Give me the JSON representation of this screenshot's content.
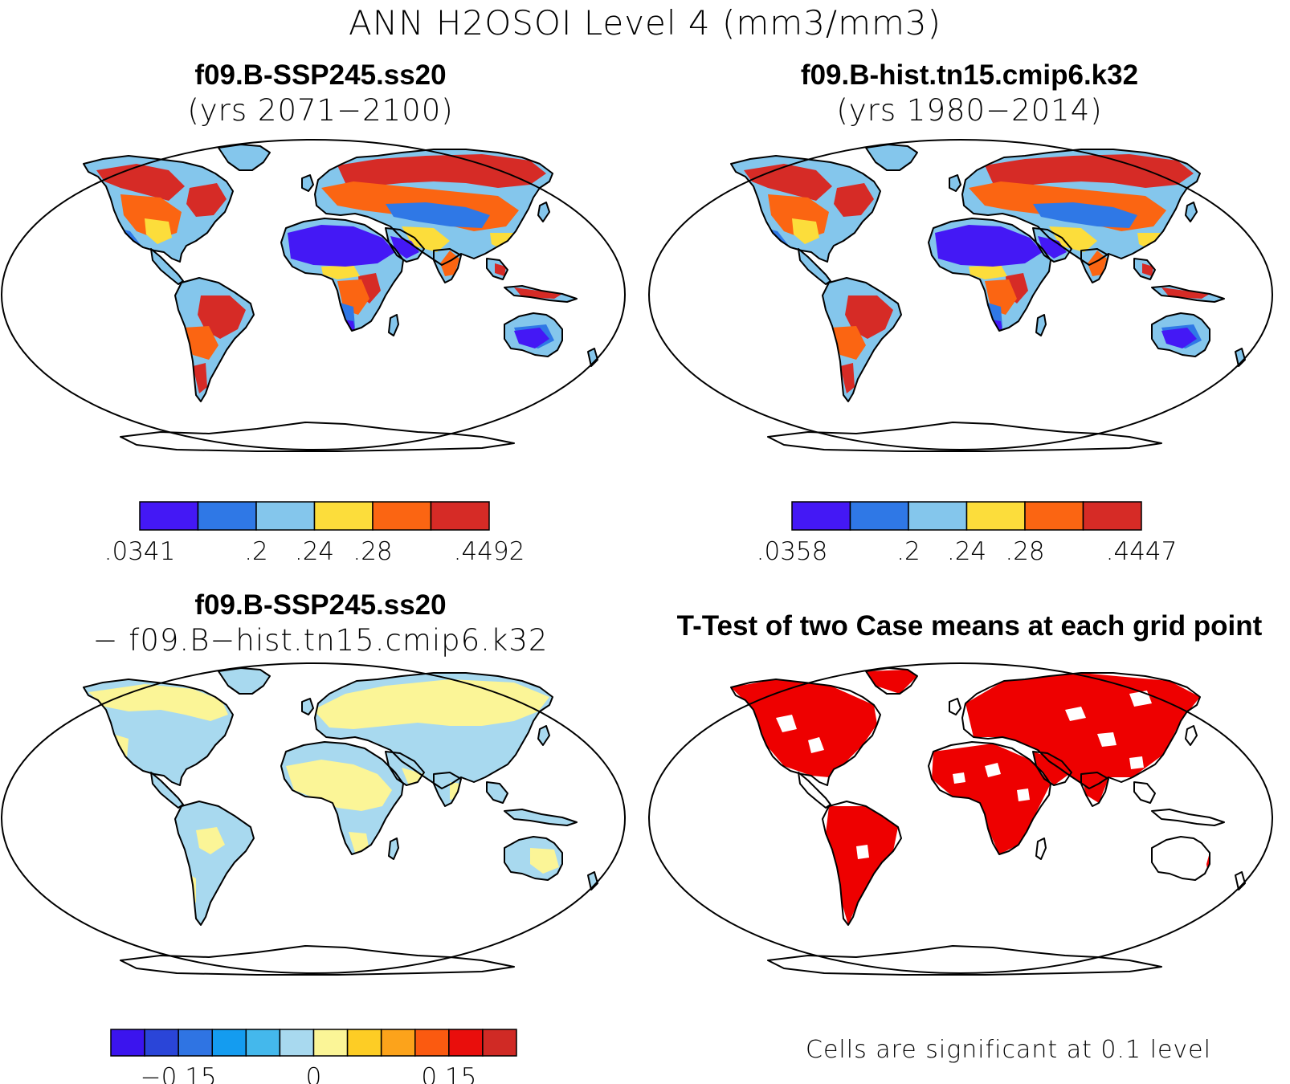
{
  "title": "ANN H2OSOI Level 4 (mm3/mm3)",
  "panels": {
    "top_left": {
      "title": "f09.B-SSP245.ss20",
      "subtitle": "(yrs 2071−2100)"
    },
    "top_right": {
      "title": "f09.B-hist.tn15.cmip6.k32",
      "subtitle": "(yrs 1980−2014)"
    },
    "bottom_left": {
      "title": "f09.B-SSP245.ss20",
      "subtitle": "− f09.B−hist.tn15.cmip6.k32"
    },
    "bottom_right": {
      "title": "T-Test of two Case means at each grid point"
    }
  },
  "colorbars": {
    "top_left": {
      "colors": [
        "#4418f5",
        "#2f78e6",
        "#84c6ec",
        "#fcdd3b",
        "#fb6512",
        "#d62b26"
      ],
      "labels": [
        ".0341",
        ".2",
        ".24",
        ".28",
        ".4492"
      ],
      "label_slots": [
        0,
        2,
        3,
        4,
        6
      ]
    },
    "top_right": {
      "colors": [
        "#4418f5",
        "#2f78e6",
        "#84c6ec",
        "#fcdd3b",
        "#fb6512",
        "#d62b26"
      ],
      "labels": [
        ".0358",
        ".2",
        ".24",
        ".28",
        ".4447"
      ],
      "label_slots": [
        0,
        2,
        3,
        4,
        6
      ]
    },
    "bottom_left": {
      "colors": [
        "#3b14ee",
        "#2a45d8",
        "#2f74e3",
        "#149cf0",
        "#44b8ec",
        "#a8d9ef",
        "#fbf597",
        "#fdcd25",
        "#fca31b",
        "#fb5a10",
        "#e90e0c",
        "#d02a25"
      ],
      "labels": [
        "−0.15",
        "0",
        "0.15"
      ],
      "label_slots": [
        2,
        6,
        10
      ]
    }
  },
  "significance_note": "Cells are significant at 0.1 level",
  "chart_data": [
    {
      "type": "map",
      "panel": "top_left",
      "variable": "H2OSOI",
      "units": "mm3/mm3",
      "min": 0.0341,
      "max": 0.4492,
      "levels": [
        0.2,
        0.24,
        0.28
      ]
    },
    {
      "type": "map",
      "panel": "top_right",
      "variable": "H2OSOI",
      "units": "mm3/mm3",
      "min": 0.0358,
      "max": 0.4447,
      "levels": [
        0.2,
        0.24,
        0.28
      ]
    },
    {
      "type": "map",
      "panel": "bottom_left",
      "variable": "H2OSOI difference",
      "units": "mm3/mm3",
      "tick_values": [
        -0.15,
        0,
        0.15
      ]
    },
    {
      "type": "map",
      "panel": "bottom_right",
      "variable": "significance",
      "significance_level": 0.1
    }
  ]
}
